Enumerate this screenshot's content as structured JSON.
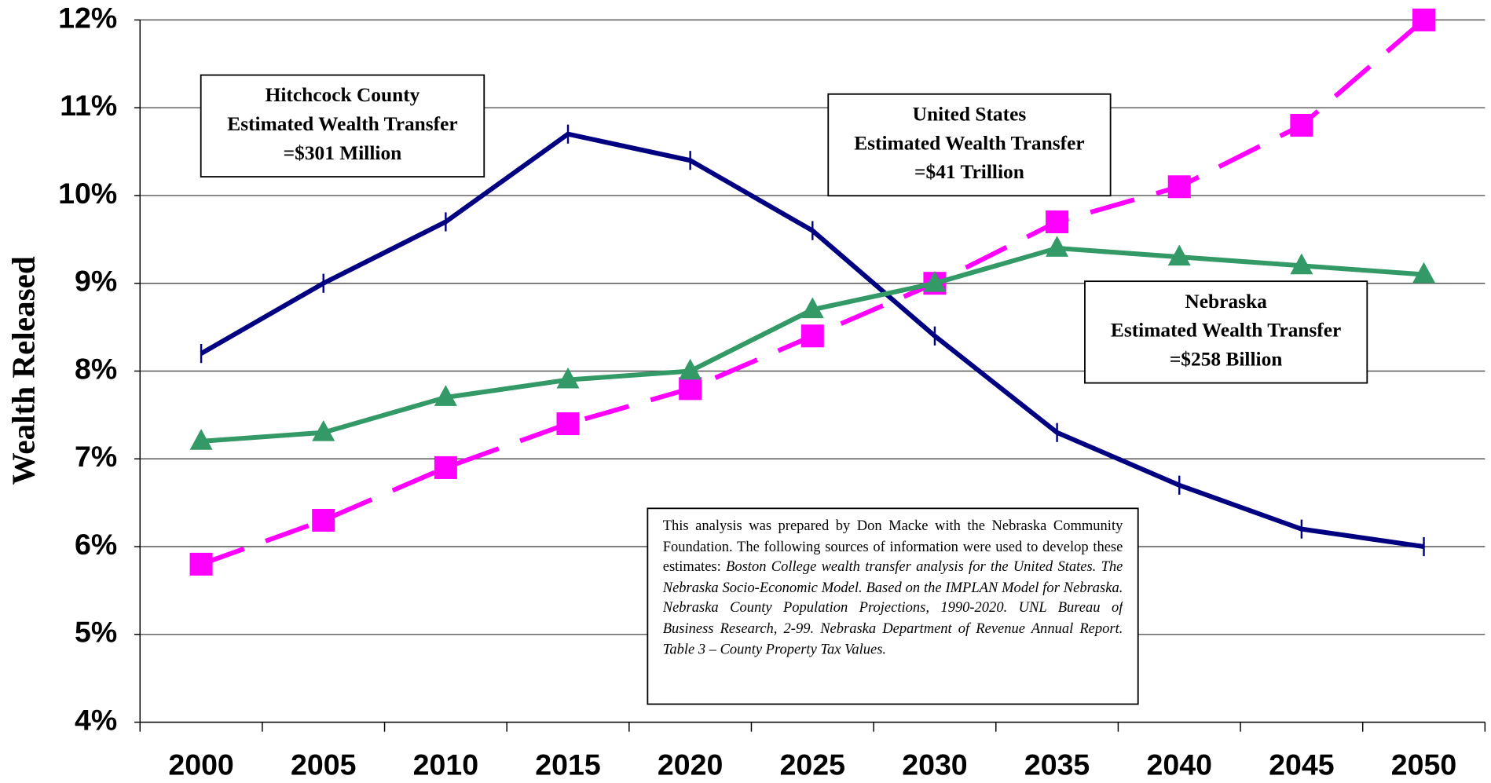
{
  "chart_data": {
    "type": "line",
    "ylabel": "Wealth Released",
    "categories": [
      "2000",
      "2005",
      "2010",
      "2015",
      "2020",
      "2025",
      "2030",
      "2035",
      "2040",
      "2045",
      "2050"
    ],
    "series": [
      {
        "color": "#000080",
        "marker": "tick",
        "dash": false,
        "values": [
          8.2,
          9.0,
          9.7,
          10.7,
          10.4,
          9.6,
          8.4,
          7.3,
          6.7,
          6.2,
          6.0
        ]
      },
      {
        "color": "#ff00ff",
        "marker": "square",
        "dash": true,
        "values": [
          5.8,
          6.3,
          6.9,
          7.4,
          7.8,
          8.4,
          9.0,
          9.7,
          10.1,
          10.8,
          12.0
        ]
      },
      {
        "color": "#339966",
        "marker": "triangle",
        "dash": false,
        "values": [
          7.2,
          7.3,
          7.7,
          7.9,
          8.0,
          8.7,
          9.0,
          9.4,
          9.3,
          9.2,
          9.1
        ]
      }
    ],
    "ylim": [
      4,
      12
    ],
    "yticks": [
      {
        "value": 4,
        "label": "4%"
      },
      {
        "value": 5,
        "label": "5%"
      },
      {
        "value": 6,
        "label": "6%"
      },
      {
        "value": 7,
        "label": "7%"
      },
      {
        "value": 8,
        "label": "8%"
      },
      {
        "value": 9,
        "label": "9%"
      },
      {
        "value": 10,
        "label": "10%"
      },
      {
        "value": 11,
        "label": "11%"
      },
      {
        "value": 12,
        "label": "12%"
      }
    ],
    "grid": true,
    "annotations": [
      {
        "lines": [
          "Hitchcock County",
          "Estimated Wealth Transfer",
          "=$301 Million"
        ]
      },
      {
        "lines": [
          "United States",
          "Estimated Wealth Transfer",
          "=$41 Trillion"
        ]
      },
      {
        "lines": [
          "Nebraska",
          "Estimated Wealth Transfer",
          "=$258 Billion"
        ]
      }
    ],
    "note": [
      {
        "text": "This analysis was prepared by Don Macke with the Nebraska Community Foundation.  The following sources of information were used to develop these estimates: ",
        "italic": false
      },
      {
        "text": "Boston College wealth transfer analysis for the United States.  The Nebraska Socio-Economic Model.  Based on the IMPLAN Model for Nebraska.  Nebraska County Population Projections, 1990-2020.  UNL Bureau of Business Research, 2-99.  Nebraska Department of Revenue Annual Report.  Table 3 – County Property Tax Values.",
        "italic": true
      }
    ]
  }
}
